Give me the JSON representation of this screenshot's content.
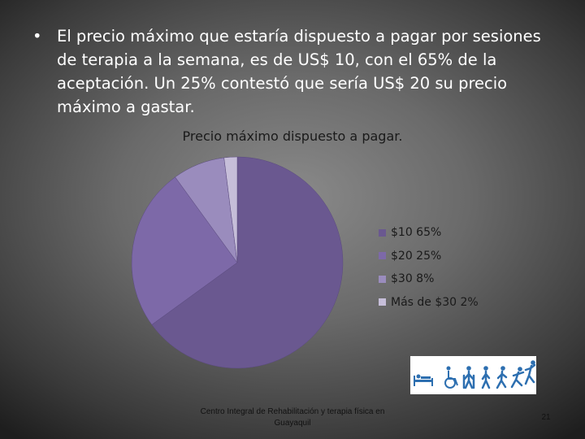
{
  "slide": {
    "bullet_symbol": "•",
    "bullet_text": "El precio máximo que estaría dispuesto a pagar por sesiones de terapia a la semana, es de US$ 10, con el 65% de la aceptación. Un 25% contestó que sería US$ 20 su precio máximo a gastar.",
    "footer": "Centro Integral de Rehabilitación y terapia física en Guayaquil",
    "page_number": "21"
  },
  "logo": {
    "icon": "rehabilitation-figures-icon"
  },
  "chart_data": {
    "type": "pie",
    "title": "Precio máximo dispuesto a pagar.",
    "start_angle_deg": 0,
    "direction": "clockwise",
    "legend_position": "right",
    "slices": [
      {
        "label": "$10 65%",
        "value": 65,
        "color": "#6a5890"
      },
      {
        "label": "$20 25%",
        "value": 25,
        "color": "#7d69a8"
      },
      {
        "label": "$30 8%",
        "value": 8,
        "color": "#9a8cbd"
      },
      {
        "label": "Más de $30 2%",
        "value": 2,
        "color": "#c6bed9"
      }
    ]
  }
}
